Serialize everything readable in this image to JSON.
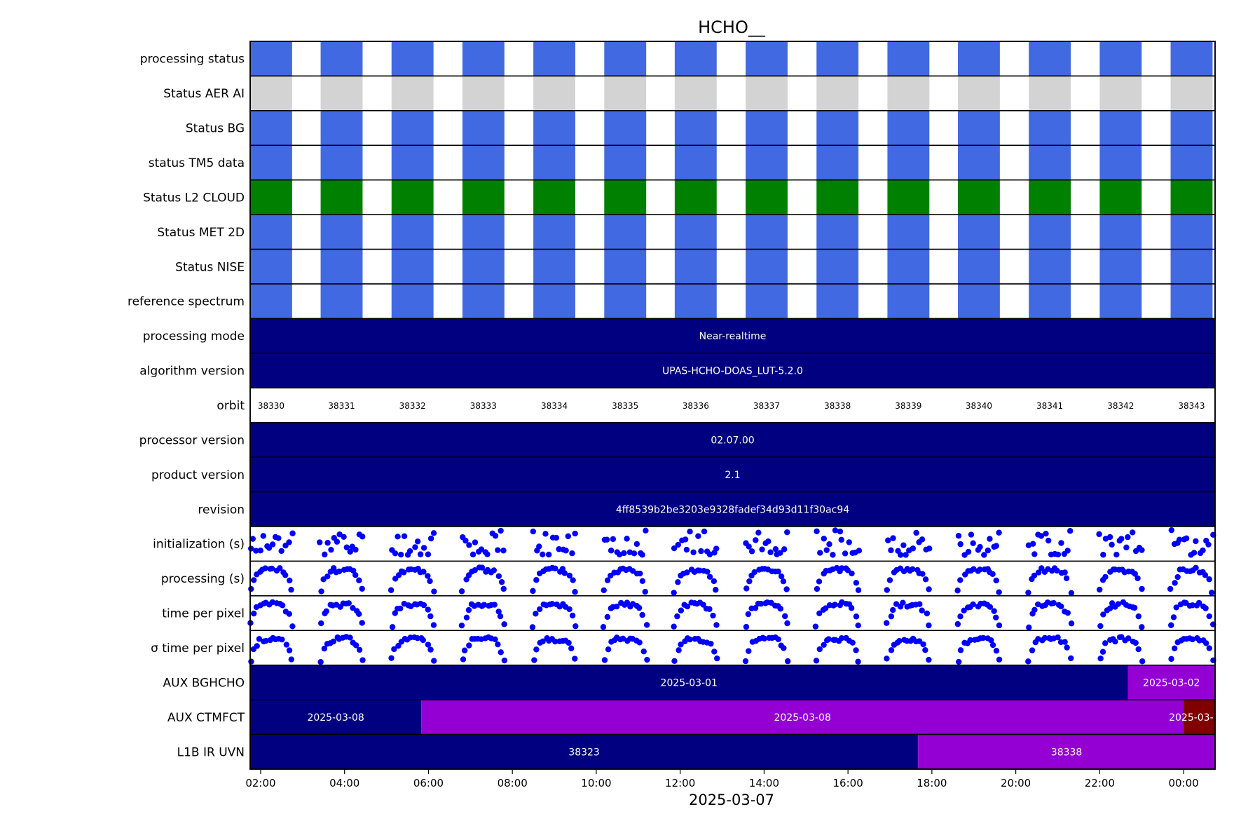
{
  "chart_data": {
    "type": "timeline",
    "title": "HCHO__",
    "xlabel": "2025-03-07",
    "x_ticks": [
      "02:00",
      "04:00",
      "06:00",
      "08:00",
      "10:00",
      "12:00",
      "14:00",
      "16:00",
      "18:00",
      "20:00",
      "22:00",
      "00:00"
    ],
    "x_tick_hours": [
      2,
      4,
      6,
      8,
      10,
      12,
      14,
      16,
      18,
      20,
      22,
      24
    ],
    "xlim_hours": [
      1.75,
      24.75
    ],
    "orbit_starts_hours": [
      1.75,
      3.43,
      5.12,
      6.81,
      8.5,
      10.19,
      11.87,
      13.56,
      15.25,
      16.94,
      18.62,
      20.31,
      22.0,
      23.69
    ],
    "orbit_duration_hours": 1.0,
    "colors": {
      "blue": "#4169e1",
      "grey": "#d3d3d3",
      "green": "#008000",
      "navy": "#000080",
      "violet": "#9400d3",
      "maroon": "#800000",
      "dots": "#0000ff"
    },
    "rows": [
      {
        "label": "processing status",
        "kind": "status",
        "color": "blue"
      },
      {
        "label": "Status AER AI",
        "kind": "status",
        "color": "grey"
      },
      {
        "label": "Status BG",
        "kind": "status",
        "color": "blue"
      },
      {
        "label": "status TM5 data",
        "kind": "status",
        "color": "blue"
      },
      {
        "label": "Status L2  CLOUD",
        "kind": "status",
        "color": "green"
      },
      {
        "label": "Status MET 2D",
        "kind": "status",
        "color": "blue"
      },
      {
        "label": "Status NISE",
        "kind": "status",
        "color": "blue"
      },
      {
        "label": "reference spectrum",
        "kind": "status",
        "color": "blue"
      },
      {
        "label": "processing mode",
        "kind": "segments",
        "segments": [
          {
            "start": 1.75,
            "end": 24.75,
            "text": "Near-realtime",
            "color": "navy"
          }
        ]
      },
      {
        "label": "algorithm version",
        "kind": "segments",
        "segments": [
          {
            "start": 1.75,
            "end": 24.75,
            "text": "UPAS-HCHO-DOAS_LUT-5.2.0",
            "color": "navy"
          }
        ]
      },
      {
        "label": "orbit",
        "kind": "orbit",
        "orbits": [
          "38330",
          "38331",
          "38332",
          "38333",
          "38334",
          "38335",
          "38336",
          "38337",
          "38338",
          "38339",
          "38340",
          "38341",
          "38342",
          "38343"
        ]
      },
      {
        "label": "processor version",
        "kind": "segments",
        "segments": [
          {
            "start": 1.75,
            "end": 24.75,
            "text": "02.07.00",
            "color": "navy"
          }
        ]
      },
      {
        "label": "product version",
        "kind": "segments",
        "segments": [
          {
            "start": 1.75,
            "end": 24.75,
            "text": "2.1",
            "color": "navy"
          }
        ]
      },
      {
        "label": "revision",
        "kind": "segments",
        "segments": [
          {
            "start": 1.75,
            "end": 24.75,
            "text": "4ff8539b2be3203e9328fadef34d93d11f30ac94",
            "color": "navy"
          }
        ]
      },
      {
        "label": "initialization (s)",
        "kind": "scatter",
        "seed": 11,
        "shape": "scatter"
      },
      {
        "label": "processing (s)",
        "kind": "scatter",
        "seed": 23,
        "shape": "hump"
      },
      {
        "label": "time per pixel",
        "kind": "scatter",
        "seed": 37,
        "shape": "hump"
      },
      {
        "label": "σ time per pixel",
        "kind": "scatter",
        "seed": 41,
        "shape": "hump"
      },
      {
        "label": "AUX BGHCHO",
        "kind": "segments",
        "segments": [
          {
            "start": 1.75,
            "end": 22.67,
            "text": "2025-03-01",
            "color": "navy"
          },
          {
            "start": 22.67,
            "end": 24.75,
            "text": "2025-03-02",
            "color": "violet"
          }
        ]
      },
      {
        "label": "AUX CTMFCT",
        "kind": "segments",
        "segments": [
          {
            "start": 1.75,
            "end": 5.83,
            "text": "2025-03-08",
            "color": "navy"
          },
          {
            "start": 5.83,
            "end": 24.0,
            "text": "2025-03-08",
            "color": "violet"
          },
          {
            "start": 24.0,
            "end": 24.75,
            "text": "2025-03-",
            "color": "maroon",
            "left_text": true
          }
        ]
      },
      {
        "label": "L1B IR UVN",
        "kind": "segments",
        "segments": [
          {
            "start": 1.75,
            "end": 17.67,
            "text": "38323",
            "color": "navy"
          },
          {
            "start": 17.67,
            "end": 24.75,
            "text": "38338",
            "color": "violet"
          }
        ]
      }
    ]
  }
}
